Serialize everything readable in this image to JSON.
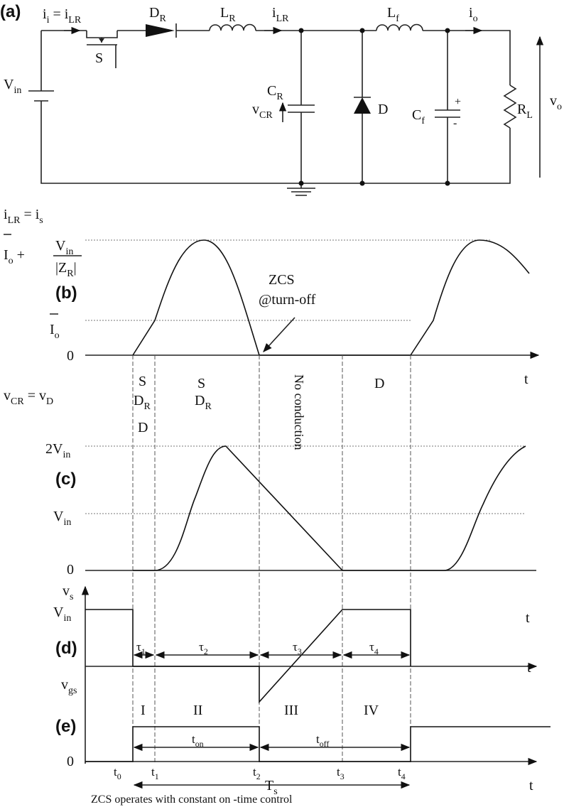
{
  "a": {
    "tag": "(a)",
    "ii": [
      {
        "text": "i",
        "sub": "i"
      },
      {
        "text": " = i",
        "sub": "LR"
      }
    ],
    "DR": {
      "text": "D",
      "sub": "R"
    },
    "LR": {
      "text": "L",
      "sub": "R"
    },
    "iLR": {
      "text": "i",
      "sub": "LR"
    },
    "Lf": {
      "text": "L",
      "sub": "f"
    },
    "io": {
      "text": "i",
      "sub": "o"
    },
    "S": "S",
    "Vin": {
      "text": "V",
      "sub": "in"
    },
    "CR": {
      "text": "C",
      "sub": "R"
    },
    "vCR": {
      "text": "v",
      "sub": "CR"
    },
    "D": "D",
    "Cf": {
      "text": "C",
      "sub": "f"
    },
    "plus": "+",
    "minus": "-",
    "RL": {
      "text": "R",
      "sub": "L"
    },
    "vo": {
      "text": "v",
      "sub": "o"
    }
  },
  "b": {
    "tag": "(b)",
    "ylabel": [
      {
        "text": "i",
        "sub": "LR"
      },
      {
        "text": " = i",
        "sub": "s"
      }
    ],
    "peak": [
      {
        "text": "I",
        "sub": "o"
      },
      {
        "text": " +"
      }
    ],
    "num": {
      "text": "V",
      "sub": "in"
    },
    "den": [
      {
        "text": "|Z",
        "sub": "R"
      },
      {
        "text": "|"
      }
    ],
    "Io": {
      "text": "I",
      "sub": "o"
    },
    "zero": "0",
    "zcs": "ZCS",
    "turnoff": "@turn-off",
    "t": "t"
  },
  "phases": {
    "p1": [
      "S",
      {
        "text": "D",
        "sub": "R"
      },
      "D"
    ],
    "p2": [
      "S",
      {
        "text": "D",
        "sub": "R"
      }
    ],
    "p3": "No conduction",
    "p4": "D"
  },
  "c": {
    "tag": "(c)",
    "ylabel": [
      {
        "text": "v",
        "sub": "CR"
      },
      {
        "text": " = v",
        "sub": "D"
      }
    ],
    "twoVin": {
      "text": "2V",
      "sub": "in"
    },
    "Vin": {
      "text": "V",
      "sub": "in"
    },
    "zero": "0",
    "t": "t"
  },
  "d": {
    "tag": "(d)",
    "ylabel": {
      "text": "v",
      "sub": "s"
    },
    "Vin": {
      "text": "V",
      "sub": "in"
    },
    "tau1": {
      "text": "τ",
      "sub": "1"
    },
    "tau2": {
      "text": "τ",
      "sub": "2"
    },
    "tau3": {
      "text": "τ",
      "sub": "3"
    },
    "tau4": {
      "text": "τ",
      "sub": "4"
    },
    "t": "t"
  },
  "e": {
    "tag": "(e)",
    "ylabel": {
      "text": "v",
      "sub": "gs"
    },
    "intervals": [
      "I",
      "II",
      "III",
      "IV"
    ],
    "ton": {
      "text": "t",
      "sub": "on"
    },
    "toff": {
      "text": "t",
      "sub": "off"
    },
    "zero": "0",
    "t0": {
      "text": "t",
      "sub": "0"
    },
    "t1": {
      "text": "t",
      "sub": "1"
    },
    "t2": {
      "text": "t",
      "sub": "2"
    },
    "t3": {
      "text": "t",
      "sub": "3"
    },
    "t4": {
      "text": "t",
      "sub": "4"
    },
    "Ts": {
      "text": "T",
      "sub": "s"
    },
    "t": "t",
    "caption": "ZCS operates with constant on -time control"
  }
}
